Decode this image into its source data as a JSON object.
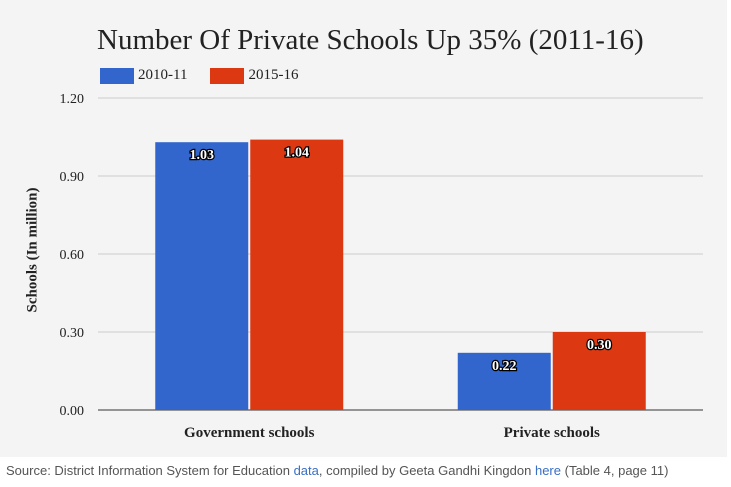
{
  "chart_data": {
    "type": "bar",
    "title": "Number Of Private Schools Up 35% (2011-16)",
    "xlabel": "",
    "ylabel": "Schools (In million)",
    "categories": [
      "Government schools",
      "Private schools"
    ],
    "series": [
      {
        "name": "2010-11",
        "color": "#3366cc",
        "values": [
          1.03,
          0.22
        ],
        "labels": [
          "1.03",
          "0.22"
        ]
      },
      {
        "name": "2015-16",
        "color": "#dc3912",
        "values": [
          1.04,
          0.3
        ],
        "labels": [
          "1.04",
          "0.30"
        ]
      }
    ],
    "ylim": [
      0,
      1.2
    ],
    "yticks": [
      "0.00",
      "0.30",
      "0.60",
      "0.90",
      "1.20"
    ],
    "grid": true,
    "legend_position": "top-left"
  },
  "source": {
    "prefix": "Source: District Information System for Education ",
    "link1": "data",
    "middle": ", compiled by Geeta Gandhi Kingdon ",
    "link2": "here",
    "suffix": " (Table 4, page 11)"
  }
}
